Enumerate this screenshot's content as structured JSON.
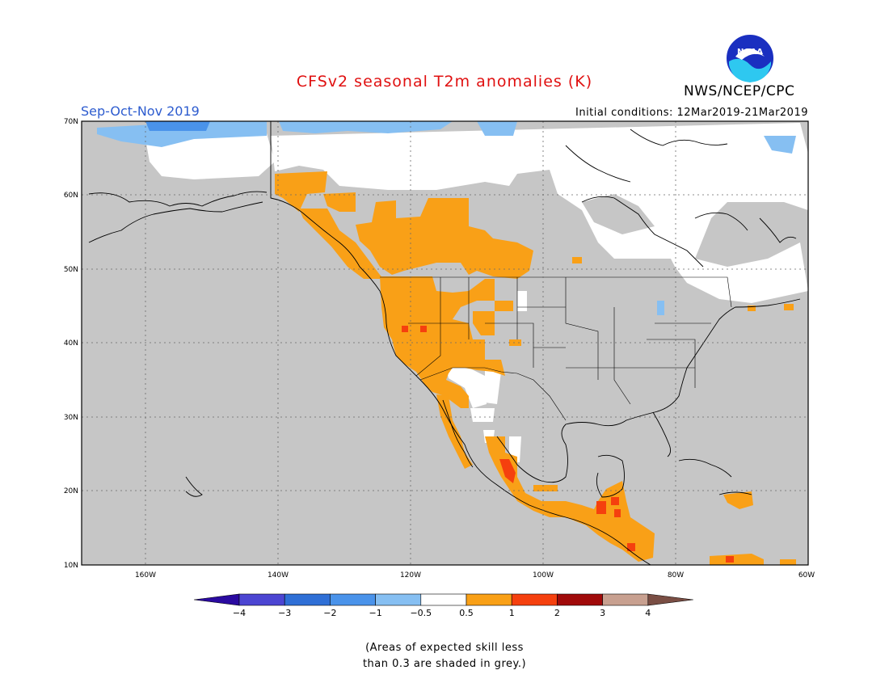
{
  "title": "CFSv2 seasonal T2m anomalies (K)",
  "season": "Sep-Oct-Nov 2019",
  "initial_conditions": "Initial conditions: 12Mar2019-21Mar2019",
  "agency": "NWS/NCEP/CPC",
  "logo_text": "NOAA",
  "lat_labels": [
    "70N",
    "60N",
    "50N",
    "40N",
    "30N",
    "20N",
    "10N"
  ],
  "lon_labels": [
    "160W",
    "140W",
    "120W",
    "100W",
    "80W",
    "60W"
  ],
  "colorbar": {
    "tick_labels": [
      "-4",
      "-3",
      "-2",
      "-1",
      "-0.5",
      "0.5",
      "1",
      "2",
      "3",
      "4"
    ],
    "colors": [
      "#2a0aa0",
      "#4c45d2",
      "#2f6fd6",
      "#4a93ea",
      "#86bff2",
      "#ffffff",
      "#f9a017",
      "#f5400e",
      "#a00a0a",
      "#c8a090",
      "#7a4e44"
    ]
  },
  "note_line1": "(Areas of expected skill less",
  "note_line2": "than 0.3 are shaded in grey.)",
  "colors": {
    "grey_mask": "#c6c6c6",
    "title": "#e01010",
    "season": "#2d5ccf"
  }
}
